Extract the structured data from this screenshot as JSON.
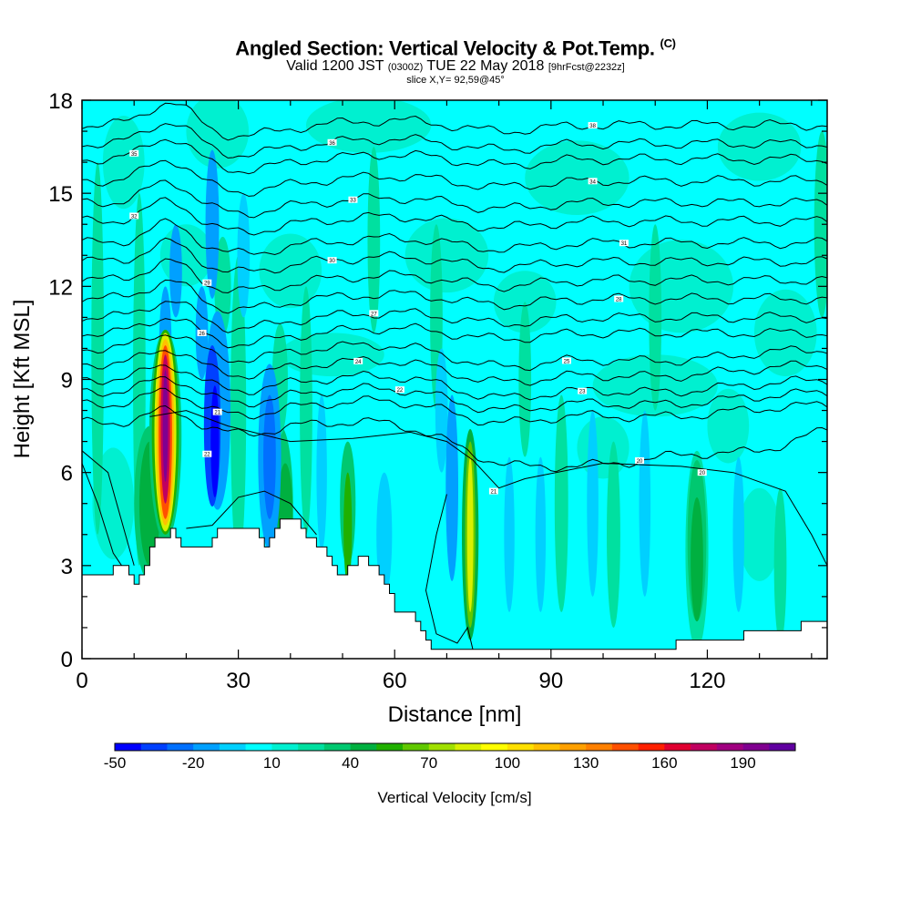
{
  "title": {
    "main": "Angled Section: Vertical Velocity & Pot.Temp.",
    "main_unit": "(C)",
    "valid_prefix": "Valid 1200 JST",
    "valid_utc": "(0300Z)",
    "valid_date": "TUE 22 May 2018",
    "forecast": "[9hrFcst@2232z]",
    "slice": "slice X,Y= 92,59@45°"
  },
  "chart_data": {
    "type": "heatmap",
    "xlabel": "Distance [nm]",
    "ylabel": "Height [Kft MSL]",
    "xlim": [
      0,
      143
    ],
    "ylim": [
      0,
      18
    ],
    "x_ticks": [
      "0",
      "30",
      "60",
      "90",
      "120"
    ],
    "x_tick_values": [
      0,
      30,
      60,
      90,
      120
    ],
    "y_ticks": [
      "0",
      "3",
      "6",
      "9",
      "12",
      "15",
      "18"
    ],
    "y_tick_values": [
      0,
      3,
      6,
      9,
      12,
      15,
      18
    ],
    "background_field_color": "#00ffff",
    "terrain": {
      "distance": [
        0,
        3,
        6,
        9,
        10,
        11,
        12,
        13,
        14,
        17,
        18,
        19,
        20,
        24,
        25,
        26,
        30,
        34,
        35,
        36,
        37,
        38,
        39,
        41,
        42,
        43,
        45,
        47,
        48,
        49,
        50,
        51,
        53,
        55,
        57,
        58,
        59,
        60,
        62,
        63,
        64,
        65,
        66,
        67,
        68,
        70,
        71,
        72,
        73,
        74,
        75,
        76,
        80,
        90,
        100,
        113,
        114,
        115,
        126,
        127,
        137,
        138,
        143
      ],
      "height_kft": [
        2.7,
        2.7,
        3.0,
        2.7,
        2.4,
        2.7,
        3.0,
        3.6,
        3.9,
        4.2,
        3.9,
        3.6,
        3.6,
        3.6,
        3.9,
        4.2,
        4.2,
        3.9,
        3.6,
        3.9,
        4.2,
        4.5,
        4.5,
        4.5,
        4.2,
        3.9,
        3.6,
        3.3,
        3.0,
        2.7,
        2.7,
        3.0,
        3.3,
        3.0,
        2.7,
        2.4,
        2.1,
        1.5,
        1.5,
        1.5,
        1.2,
        0.9,
        0.6,
        0.3,
        0.3,
        0.3,
        0.3,
        0.3,
        0.3,
        0.3,
        0.3,
        0.3,
        0.3,
        0.3,
        0.3,
        0.3,
        0.6,
        0.6,
        0.6,
        0.9,
        0.9,
        1.2,
        1.2
      ]
    },
    "isentrope_labels": [
      "38",
      "36",
      "35",
      "34",
      "33",
      "32",
      "31",
      "30",
      "29",
      "28",
      "27",
      "26",
      "25",
      "24",
      "23",
      "22",
      "21",
      "20"
    ],
    "colorbar": {
      "label": "Vertical Velocity [cm/s]",
      "tick_labels": [
        "-50",
        "-20",
        "10",
        "40",
        "70",
        "100",
        "130",
        "160",
        "190"
      ],
      "levels": [
        -50,
        -40,
        -30,
        -20,
        -10,
        0,
        10,
        20,
        30,
        40,
        50,
        60,
        70,
        80,
        90,
        100,
        110,
        120,
        130,
        140,
        150,
        160,
        170,
        180,
        190,
        200,
        210
      ],
      "colors": [
        "#0000ff",
        "#0040ff",
        "#0070ff",
        "#00a0ff",
        "#00d0ff",
        "#00ffff",
        "#00f0d0",
        "#00e0a0",
        "#00c870",
        "#00b040",
        "#20b000",
        "#60c800",
        "#a0e000",
        "#d8f000",
        "#ffff00",
        "#ffe000",
        "#ffc000",
        "#ffa000",
        "#ff8000",
        "#ff5000",
        "#ff2000",
        "#e00030",
        "#c00060",
        "#a00080",
        "#800090",
        "#6000a0"
      ]
    }
  }
}
